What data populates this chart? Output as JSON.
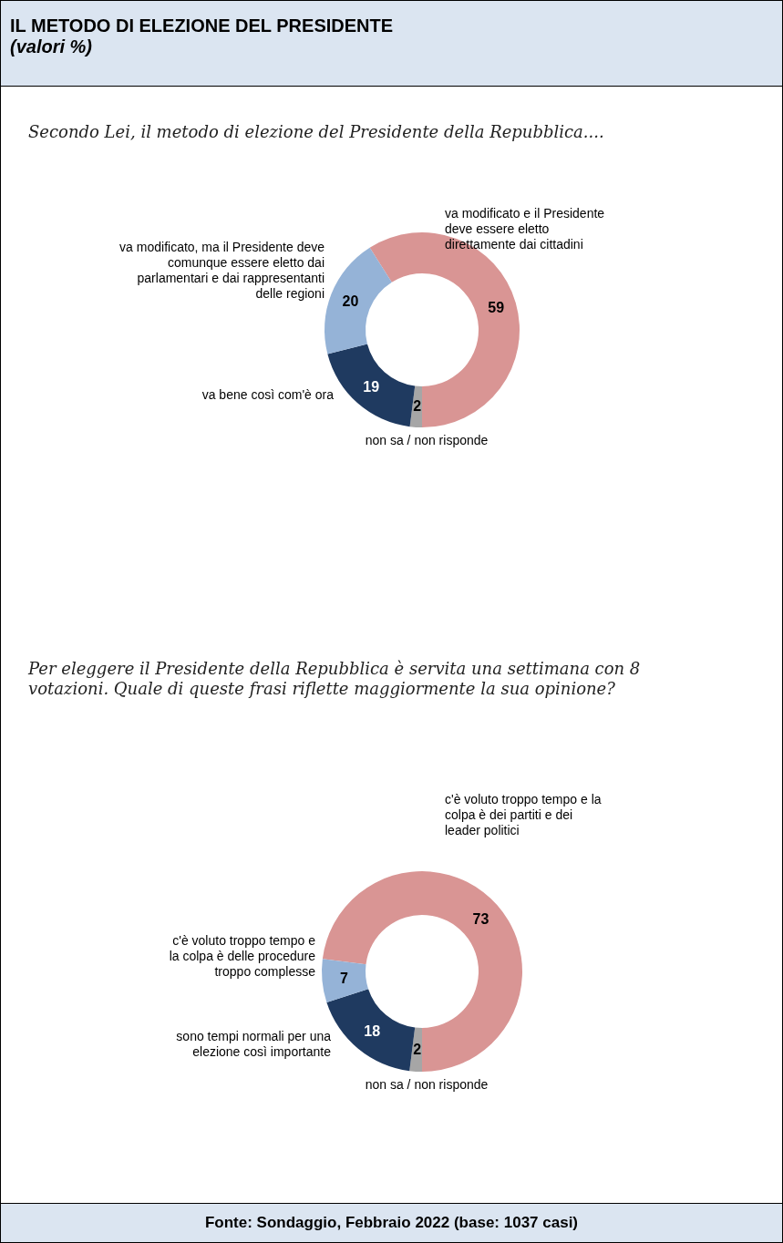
{
  "chart_data": [
    {
      "type": "other",
      "title": "IL METODO DI ELEZIONE DEL PRESIDENTE",
      "subtitle": "(valori %)"
    },
    {
      "type": "donut",
      "title": "Secondo Lei, il metodo di elezione del Presidente della Repubblica....",
      "categories": [
        "va modificato e il Presidente deve essere eletto direttamente dai cittadini",
        "non sa / non risponde",
        "va bene così com'è ora",
        "va modificato, ma il Presidente deve comunque essere eletto dai parlamentari e dai rappresentanti delle regioni"
      ],
      "values": [
        59,
        2,
        19,
        20
      ],
      "colors": [
        "#d99594",
        "#a6a6a6",
        "#1f3a60",
        "#95b3d7"
      ],
      "data_labels": true
    },
    {
      "type": "donut",
      "title": "Per eleggere il Presidente della Repubblica è servita una settimana con 8 votazioni. Quale di queste frasi riflette maggiormente la sua opinione?",
      "categories": [
        "c'è voluto troppo tempo e la colpa è dei partiti e dei leader politici",
        "non sa / non risponde",
        "sono tempi normali per una elezione così importante",
        "c'è voluto troppo tempo e la colpa è delle procedure troppo complesse"
      ],
      "values": [
        73,
        2,
        18,
        7
      ],
      "colors": [
        "#d99594",
        "#a6a6a6",
        "#1f3a60",
        "#95b3d7"
      ],
      "data_labels": true,
      "annotations": [
        "Fonte: Sondaggio, Febbraio 2022 (base: 1037 casi)"
      ]
    }
  ]
}
